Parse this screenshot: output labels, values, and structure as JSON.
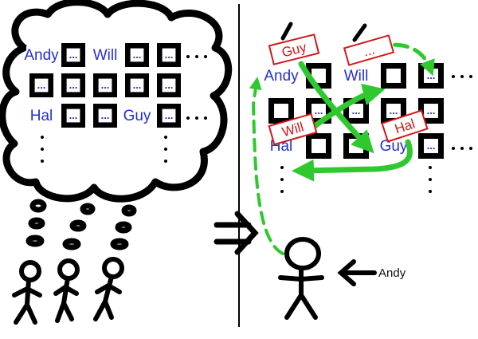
{
  "left_panel": {
    "cells": [
      {
        "row": 0,
        "col": 0,
        "text": "Andy",
        "style": "label"
      },
      {
        "row": 0,
        "col": 1,
        "text": "...",
        "style": "box"
      },
      {
        "row": 0,
        "col": 2,
        "text": "Will",
        "style": "label"
      },
      {
        "row": 0,
        "col": 3,
        "text": "...",
        "style": "box"
      },
      {
        "row": 0,
        "col": 4,
        "text": "...",
        "style": "box"
      },
      {
        "row": 1,
        "col": 0,
        "text": "...",
        "style": "box"
      },
      {
        "row": 1,
        "col": 1,
        "text": "...",
        "style": "box"
      },
      {
        "row": 1,
        "col": 2,
        "text": "...",
        "style": "box"
      },
      {
        "row": 1,
        "col": 3,
        "text": "...",
        "style": "box"
      },
      {
        "row": 1,
        "col": 4,
        "text": "...",
        "style": "box"
      },
      {
        "row": 2,
        "col": 0,
        "text": "Hal",
        "style": "label"
      },
      {
        "row": 2,
        "col": 1,
        "text": "...",
        "style": "box"
      },
      {
        "row": 2,
        "col": 2,
        "text": "...",
        "style": "box"
      },
      {
        "row": 2,
        "col": 3,
        "text": "Guy",
        "style": "label"
      },
      {
        "row": 2,
        "col": 4,
        "text": "...",
        "style": "box"
      }
    ]
  },
  "right_panel": {
    "cells": [
      {
        "row": 0,
        "col": 0,
        "text": "Andy",
        "style": "label"
      },
      {
        "row": 0,
        "col": 1,
        "text": "",
        "style": "box"
      },
      {
        "row": 0,
        "col": 2,
        "text": "Will",
        "style": "label"
      },
      {
        "row": 0,
        "col": 3,
        "text": "",
        "style": "box"
      },
      {
        "row": 0,
        "col": 4,
        "text": "...",
        "style": "box"
      },
      {
        "row": 1,
        "col": 0,
        "text": "",
        "style": "box"
      },
      {
        "row": 1,
        "col": 1,
        "text": "...",
        "style": "box"
      },
      {
        "row": 1,
        "col": 2,
        "text": "...",
        "style": "box"
      },
      {
        "row": 1,
        "col": 3,
        "text": "...",
        "style": "box"
      },
      {
        "row": 1,
        "col": 4,
        "text": "...",
        "style": "box"
      },
      {
        "row": 2,
        "col": 0,
        "text": "Hal",
        "style": "label"
      },
      {
        "row": 2,
        "col": 1,
        "text": "",
        "style": "box"
      },
      {
        "row": 2,
        "col": 2,
        "text": "",
        "style": "box"
      },
      {
        "row": 2,
        "col": 3,
        "text": "Guy",
        "style": "label"
      },
      {
        "row": 2,
        "col": 4,
        "text": "...",
        "style": "box"
      }
    ],
    "tags": [
      "Guy",
      "...",
      "Will",
      "Hal"
    ]
  },
  "caption": "Andy",
  "colors": {
    "ink": "#000000",
    "label_text": "#2430d0",
    "tag_border": "#d01818",
    "arrow": "#2fc92f"
  }
}
